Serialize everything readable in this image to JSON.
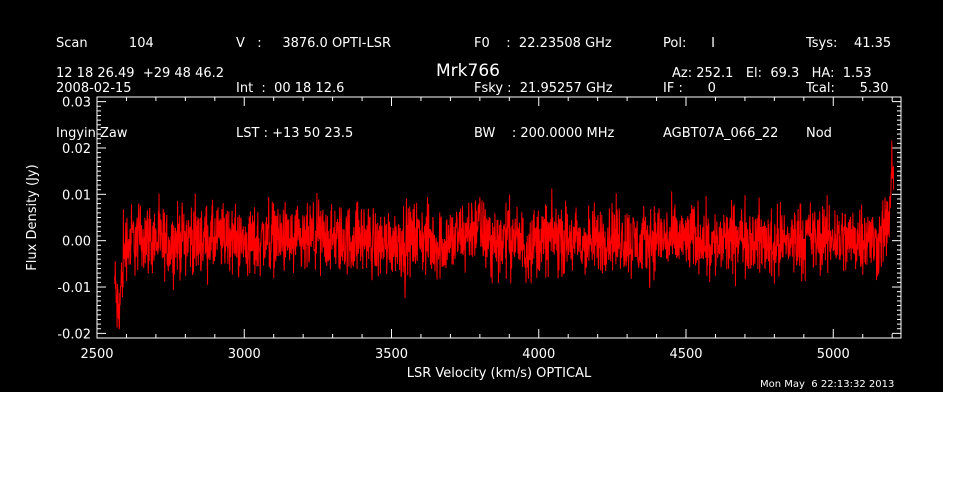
{
  "header": {
    "col1": [
      "Scan          104",
      "2008-02-15",
      "Ingyin Zaw"
    ],
    "col2": [
      "V   :     3876.0 OPTI-LSR",
      "Int  :  00 18 12.6",
      "LST : +13 50 23.5"
    ],
    "col3": [
      "F0    :  22.23508 GHz",
      "Fsky :  21.95257 GHz",
      "BW    : 200.0000 MHz"
    ],
    "col4": [
      "Pol:      I",
      "IF :      0",
      "AGBT07A_066_22"
    ],
    "col5": [
      "Tsys:    41.35",
      "Tcal:      5.30",
      "Nod"
    ],
    "coords": "12 18 26.49  +29 48 46.2",
    "azel": "Az: 252.1   El:  69.3   HA:  1.53"
  },
  "timestamp": "Mon May  6 22:13:32 2013",
  "colors": {
    "background": "#000000",
    "axes": "#ffffff",
    "spectrum": "#ff0000"
  },
  "chart_data": {
    "type": "line",
    "title": "Mrk766",
    "xlabel": "LSR Velocity (km/s) OPTICAL",
    "ylabel": "Flux Density (Jy)",
    "xlim": [
      2500,
      5230
    ],
    "ylim": [
      -0.021,
      0.031
    ],
    "xticks": [
      2500,
      3000,
      3500,
      4000,
      4500,
      5000
    ],
    "xtick_labels": [
      "2500",
      "3000",
      "3500",
      "4000",
      "4500",
      "5000"
    ],
    "yticks": [
      -0.02,
      -0.01,
      0.0,
      0.01,
      0.02,
      0.03
    ],
    "ytick_labels": [
      "-0.02",
      "-0.01",
      "0.00",
      "0.01",
      "0.02",
      "0.03"
    ],
    "series": [
      {
        "color": "#ff0000",
        "x": [
          2560,
          2565,
          2570,
          2575,
          2580,
          2585,
          2590,
          2595,
          2600,
          2610,
          2620,
          2630,
          2650,
          2700,
          2750,
          2800,
          2850,
          2900,
          2950,
          3000,
          3050,
          3100,
          3150,
          3200,
          3250,
          3300,
          3350,
          3400,
          3450,
          3500,
          3550,
          3600,
          3650,
          3700,
          3750,
          3790,
          3800,
          3810,
          3850,
          3900,
          3950,
          4000,
          4050,
          4100,
          4150,
          4200,
          4250,
          4300,
          4350,
          4400,
          4450,
          4500,
          4550,
          4600,
          4650,
          4700,
          4750,
          4800,
          4850,
          4900,
          4950,
          5000,
          5050,
          5100,
          5130,
          5150,
          5160,
          5170,
          5180,
          5185,
          5190,
          5195,
          5200,
          5205
        ],
        "y": [
          -0.009,
          -0.012,
          -0.015,
          -0.016,
          -0.011,
          -0.008,
          -0.004,
          -0.002,
          0.0,
          -0.001,
          0.001,
          0.0,
          0.001,
          0.0,
          -0.001,
          0.001,
          0.0,
          0.0,
          0.001,
          -0.001,
          0.0,
          0.001,
          0.0,
          -0.001,
          0.001,
          0.0,
          0.0,
          0.001,
          -0.001,
          0.0,
          0.0,
          0.001,
          -0.001,
          0.0,
          0.001,
          0.004,
          0.003,
          0.001,
          0.0,
          0.001,
          -0.001,
          0.0,
          0.001,
          0.0,
          -0.001,
          0.0,
          0.001,
          0.0,
          -0.001,
          0.001,
          0.0,
          0.0,
          0.001,
          -0.001,
          0.0,
          0.001,
          0.0,
          -0.001,
          0.0,
          0.001,
          0.0,
          0.001,
          0.0,
          0.001,
          0.0,
          -0.001,
          0.001,
          0.002,
          0.003,
          0.004,
          0.006,
          0.008,
          0.012,
          0.015
        ]
      }
    ]
  }
}
